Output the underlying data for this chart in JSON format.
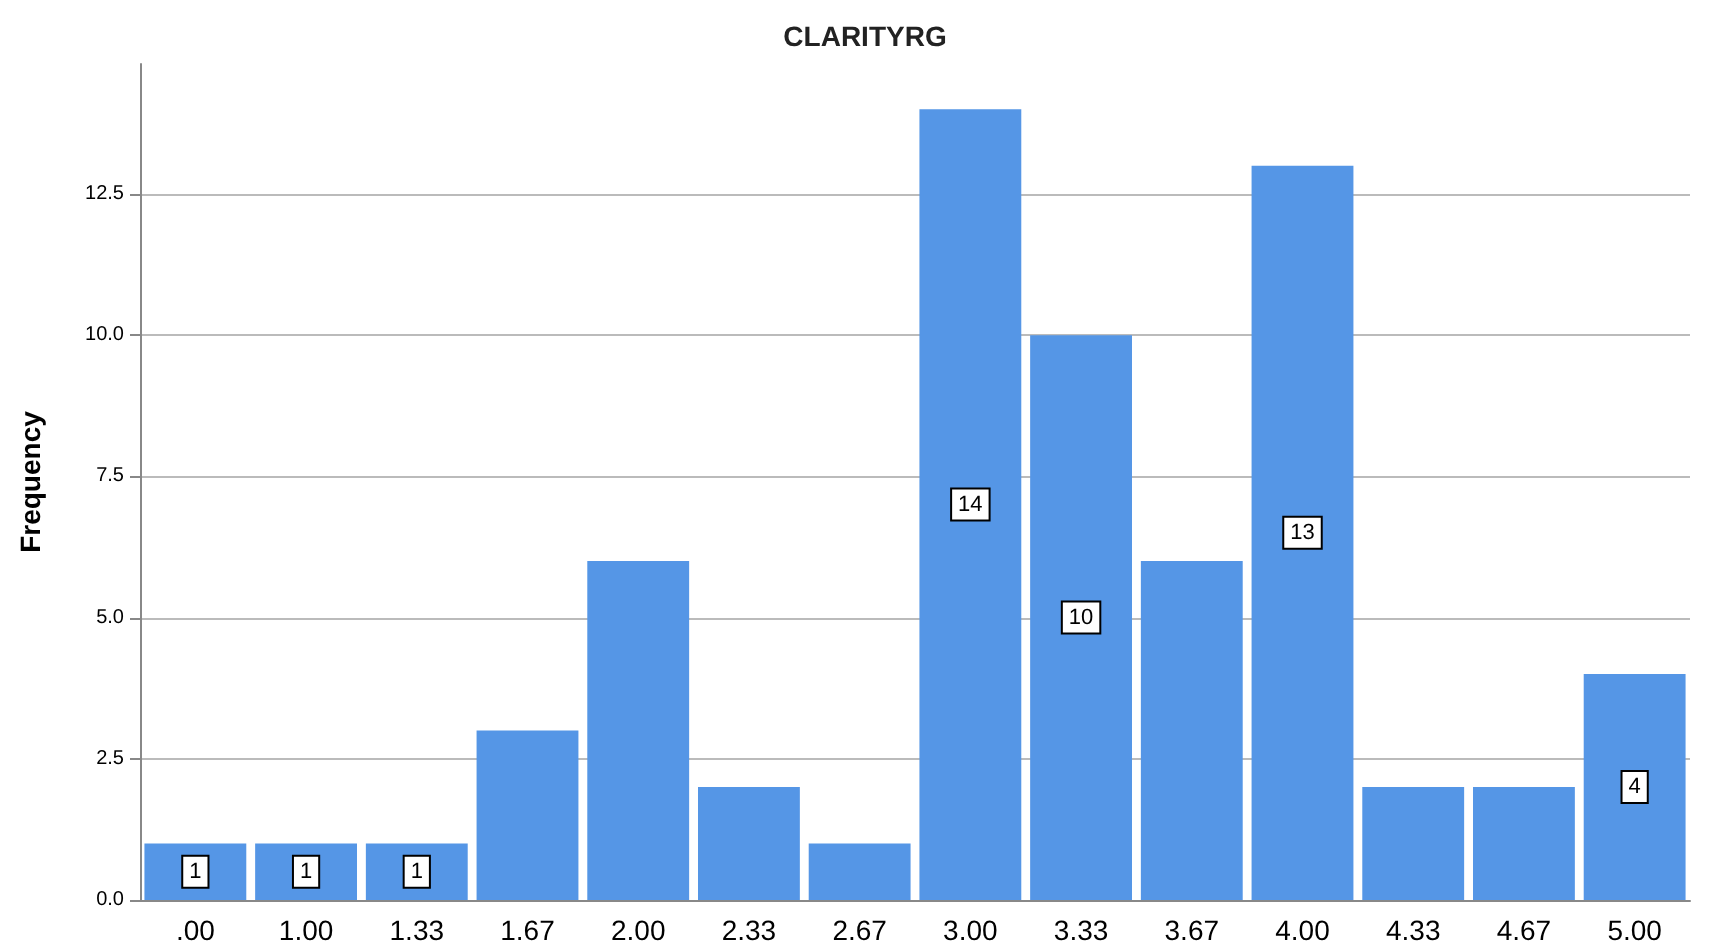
{
  "chart_data": {
    "type": "bar",
    "title": "CLARITYRG",
    "ylabel": "Frequency",
    "categories": [
      ".00",
      "1.00",
      "1.33",
      "1.67",
      "2.00",
      "2.33",
      "2.67",
      "3.00",
      "3.33",
      "3.67",
      "4.00",
      "4.33",
      "4.67",
      "5.00"
    ],
    "values": [
      1,
      1,
      1,
      3,
      6,
      2,
      1,
      14,
      10,
      6,
      13,
      2,
      2,
      4
    ],
    "value_labels": [
      "1",
      "1",
      "1",
      null,
      null,
      null,
      null,
      "14",
      "10",
      null,
      "13",
      null,
      null,
      "4"
    ],
    "color": "#5596e6",
    "ylim": [
      0,
      14.8
    ],
    "yticks": [
      {
        "value": 0,
        "label": "0.0"
      },
      {
        "value": 2.5,
        "label": "2.5"
      },
      {
        "value": 5,
        "label": "5.0"
      },
      {
        "value": 7.5,
        "label": "7.5"
      },
      {
        "value": 10,
        "label": "10.0"
      },
      {
        "value": 12.5,
        "label": "12.5"
      }
    ],
    "grid": "y"
  }
}
